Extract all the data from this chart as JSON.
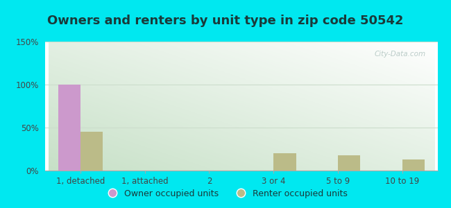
{
  "title": "Owners and renters by unit type in zip code 50542",
  "categories": [
    "1, detached",
    "1, attached",
    "2",
    "3 or 4",
    "5 to 9",
    "10 to 19"
  ],
  "owner_values": [
    100,
    0,
    0,
    0,
    0,
    0
  ],
  "renter_values": [
    45,
    0,
    0,
    20,
    18,
    13
  ],
  "owner_color": "#cc99cc",
  "renter_color": "#bbbb88",
  "ylim": [
    0,
    150
  ],
  "yticks": [
    0,
    50,
    100,
    150
  ],
  "ytick_labels": [
    "0%",
    "50%",
    "100%",
    "150%"
  ],
  "bar_width": 0.35,
  "bg_cyan": "#00e8f0",
  "bg_plot_top_right": "#f5fff8",
  "bg_plot_bottom_left": "#c8ddc0",
  "watermark": "City-Data.com",
  "legend_owner": "Owner occupied units",
  "legend_renter": "Renter occupied units",
  "title_fontsize": 13,
  "axis_fontsize": 8.5,
  "legend_fontsize": 9,
  "title_color": "#1a3a3a",
  "tick_color": "#444444",
  "grid_color": "#ccddcc"
}
